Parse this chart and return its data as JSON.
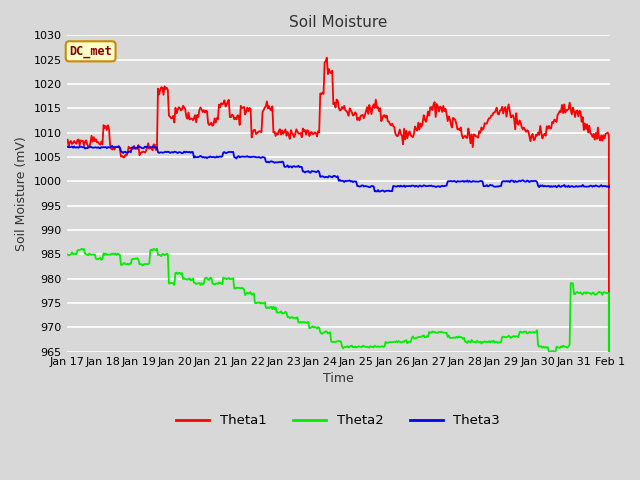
{
  "title": "Soil Moisture",
  "xlabel": "Time",
  "ylabel": "Soil Moisture (mV)",
  "ylim": [
    965,
    1030
  ],
  "yticks": [
    965,
    970,
    975,
    980,
    985,
    990,
    995,
    1000,
    1005,
    1010,
    1015,
    1020,
    1025,
    1030
  ],
  "bg_color": "#d8d8d8",
  "grid_color": "#ffffff",
  "title_fontsize": 11,
  "axis_label_fontsize": 9,
  "tick_fontsize": 8,
  "legend_entries": [
    "Theta1",
    "Theta2",
    "Theta3"
  ],
  "line_colors": [
    "#ff0000",
    "#00ee00",
    "#0000ff"
  ],
  "annotation_text": "DC_met",
  "annotation_box_color": "#ffffcc",
  "annotation_box_edge": "#cc8800",
  "annotation_text_color": "#880000",
  "x_tick_labels": [
    "Jan 17",
    "Jan 18",
    "Jan 19",
    "Jan 20",
    "Jan 21",
    "Jan 22",
    "Jan 23",
    "Jan 24",
    "Jan 25",
    "Jan 26",
    "Jan 27",
    "Jan 28",
    "Jan 29",
    "Jan 30",
    "Jan 31",
    "Feb 1"
  ]
}
